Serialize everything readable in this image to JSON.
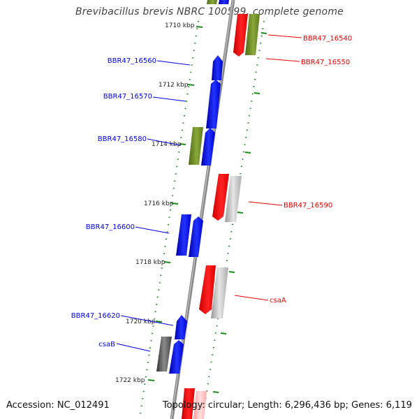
{
  "title": "Brevibacillus brevis NBRC 100599, complete genome",
  "footer": {
    "accession": "Accession: NC_012491",
    "summary": "Topology: circular; Length: 6,296,436 bp; Genes: 6,119"
  },
  "colors": {
    "blue": "#0000ee",
    "red": "#ee0000",
    "green": "#6b8e23",
    "gray": "#aaaaaa",
    "dark_gray": "#555555",
    "tick": "#1a8a1a",
    "backbone": "#888888"
  },
  "scale_labels": [
    "1710 kbp",
    "1712 kbp",
    "1714 kbp",
    "1716 kbp",
    "1718 kbp",
    "1720 kbp",
    "1722 kbp"
  ],
  "gene_labels": [
    {
      "text": "BBR47_16540",
      "color": "red"
    },
    {
      "text": "BBR47_16550",
      "color": "red"
    },
    {
      "text": "BBR47_16560",
      "color": "blue"
    },
    {
      "text": "BBR47_16570",
      "color": "blue"
    },
    {
      "text": "BBR47_16580",
      "color": "blue"
    },
    {
      "text": "BBR47_16590",
      "color": "red"
    },
    {
      "text": "BBR47_16600",
      "color": "blue"
    },
    {
      "text": "csaA",
      "color": "red"
    },
    {
      "text": "BBR47_16620",
      "color": "blue"
    },
    {
      "text": "csaB",
      "color": "blue"
    }
  ]
}
